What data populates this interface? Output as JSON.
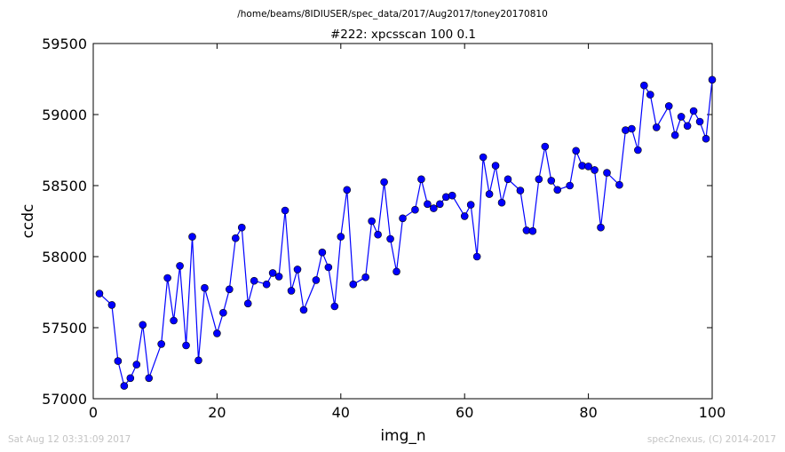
{
  "figure": {
    "suptitle": "/home/beams/8IDIUSER/spec_data/2017/Aug2017/toney20170810",
    "footer_left": "Sat Aug 12 03:31:09 2017",
    "footer_right": "spec2nexus, (C) 2014-2017"
  },
  "colors": {
    "series": "#0000ff",
    "marker_edge": "#000000",
    "axes": "#000000"
  },
  "chart_data": {
    "type": "line",
    "title": "#222: xpcsscan 100 0.1",
    "xlabel": "img_n",
    "ylabel": "ccdc",
    "xlim": [
      0,
      100
    ],
    "ylim": [
      57000,
      59500
    ],
    "x_ticks": [
      0,
      20,
      40,
      60,
      80,
      100
    ],
    "y_ticks": [
      57000,
      57500,
      58000,
      58500,
      59000,
      59500
    ],
    "x_tick_labels": [
      "0",
      "20",
      "40",
      "60",
      "80",
      "100"
    ],
    "y_tick_labels": [
      "57000",
      "57500",
      "58000",
      "58500",
      "59000",
      "59500"
    ],
    "grid": false,
    "markers": "circle",
    "series": [
      {
        "x": [
          1,
          3,
          4,
          5,
          6,
          7,
          8,
          9,
          11,
          12,
          13,
          14,
          15,
          16,
          17,
          18,
          20,
          21,
          22,
          23,
          24,
          25,
          26,
          28,
          29,
          30,
          31,
          32,
          33,
          34,
          36,
          37,
          38,
          39,
          40,
          41,
          42,
          44,
          45,
          46,
          47,
          48,
          49,
          50,
          52,
          53,
          54,
          55,
          56,
          57,
          58,
          60,
          61,
          62,
          63,
          64,
          65,
          66,
          67,
          69,
          70,
          71,
          72,
          73,
          74,
          75,
          77,
          78,
          79,
          80,
          81,
          82,
          83,
          85,
          86,
          87,
          88,
          89,
          90,
          91,
          93,
          94,
          95,
          96,
          97,
          98,
          99,
          100
        ],
        "y": [
          57740,
          57660,
          57265,
          57090,
          57145,
          57240,
          57520,
          57145,
          57385,
          57850,
          57550,
          57935,
          57375,
          58140,
          57270,
          57780,
          57460,
          57605,
          57770,
          58130,
          58205,
          57670,
          57830,
          57805,
          57885,
          57860,
          58325,
          57760,
          57910,
          57625,
          57835,
          58030,
          57925,
          57650,
          58140,
          58470,
          57805,
          57855,
          58250,
          58155,
          58525,
          58125,
          57895,
          58270,
          58330,
          58545,
          58370,
          58340,
          58370,
          58420,
          58430,
          58285,
          58365,
          58000,
          58700,
          58440,
          58640,
          58380,
          58545,
          58465,
          58185,
          58180,
          58545,
          58775,
          58535,
          58470,
          58500,
          58745,
          58640,
          58635,
          58610,
          58205,
          58590,
          58505,
          58890,
          58900,
          58750,
          59205,
          59140,
          58910,
          59060,
          58855,
          58985,
          58920,
          59025,
          58950,
          58830,
          59245
        ]
      }
    ]
  }
}
